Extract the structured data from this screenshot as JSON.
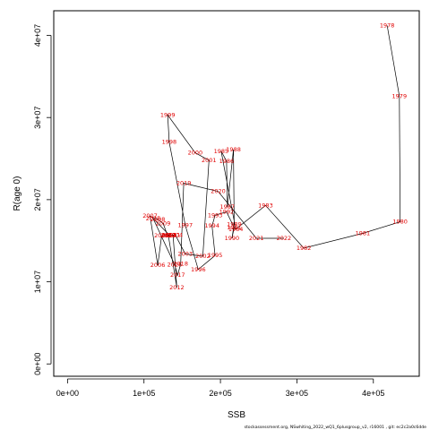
{
  "chart_data": {
    "type": "line",
    "title": "",
    "xlabel": "SSB",
    "ylabel": "R(age 0)",
    "xlim": [
      -18000,
      460000
    ],
    "ylim": [
      -1500000,
      43000000
    ],
    "x_ticks": [
      0,
      100000,
      200000,
      300000,
      400000
    ],
    "x_tick_labels": [
      "0e+00",
      "1e+05",
      "2e+05",
      "3e+05",
      "4e+05"
    ],
    "y_ticks": [
      0,
      10000000,
      20000000,
      30000000,
      40000000
    ],
    "y_tick_labels": [
      "0e+00",
      "1e+07",
      "2e+07",
      "3e+07",
      "4e+07"
    ],
    "grid": false,
    "line_color": "#000000",
    "label_color": "#e00000",
    "points": [
      {
        "year": "1978",
        "ssb": 418000,
        "rec": 41200000
      },
      {
        "year": "1979",
        "ssb": 434000,
        "rec": 32600000
      },
      {
        "year": "1980",
        "ssb": 435000,
        "rec": 17300000
      },
      {
        "year": "1981",
        "ssb": 386000,
        "rec": 15900000
      },
      {
        "year": "1982",
        "ssb": 309000,
        "rec": 14100000
      },
      {
        "year": "1983",
        "ssb": 259000,
        "rec": 19300000
      },
      {
        "year": "1984",
        "ssb": 220000,
        "rec": 16400000
      },
      {
        "year": "1985",
        "ssb": 201000,
        "rec": 25900000
      },
      {
        "year": "1986",
        "ssb": 208000,
        "rec": 24700000
      },
      {
        "year": "1987",
        "ssb": 209000,
        "rec": 19100000
      },
      {
        "year": "1988",
        "ssb": 217000,
        "rec": 26100000
      },
      {
        "year": "1989",
        "ssb": 218000,
        "rec": 17000000
      },
      {
        "year": "1990",
        "ssb": 215000,
        "rec": 15300000
      },
      {
        "year": "1991",
        "ssb": 218000,
        "rec": 16600000
      },
      {
        "year": "1992",
        "ssb": 208000,
        "rec": 18500000
      },
      {
        "year": "1993",
        "ssb": 193000,
        "rec": 18100000
      },
      {
        "year": "1994",
        "ssb": 189000,
        "rec": 16800000
      },
      {
        "year": "1995",
        "ssb": 193000,
        "rec": 13200000
      },
      {
        "year": "1996",
        "ssb": 171000,
        "rec": 11500000
      },
      {
        "year": "1997",
        "ssb": 154000,
        "rec": 16900000
      },
      {
        "year": "1998",
        "ssb": 133000,
        "rec": 27000000
      },
      {
        "year": "1999",
        "ssb": 131000,
        "rec": 30300000
      },
      {
        "year": "2000",
        "ssb": 167000,
        "rec": 25700000
      },
      {
        "year": "2001",
        "ssb": 185000,
        "rec": 24800000
      },
      {
        "year": "2002",
        "ssb": 177000,
        "rec": 13100000
      },
      {
        "year": "2003",
        "ssb": 154000,
        "rec": 13400000
      },
      {
        "year": "2004",
        "ssb": 141000,
        "rec": 15700000
      },
      {
        "year": "2005",
        "ssb": 123000,
        "rec": 15600000
      },
      {
        "year": "2006",
        "ssb": 118000,
        "rec": 12000000
      },
      {
        "year": "2007",
        "ssb": 108000,
        "rec": 18000000
      },
      {
        "year": "2008",
        "ssb": 118000,
        "rec": 17600000
      },
      {
        "year": "2009",
        "ssb": 125000,
        "rec": 17100000
      },
      {
        "year": "2010",
        "ssb": 131000,
        "rec": 15600000
      },
      {
        "year": "2011",
        "ssb": 138000,
        "rec": 15700000
      },
      {
        "year": "2012",
        "ssb": 143000,
        "rec": 9300000
      },
      {
        "year": "2013",
        "ssb": 132000,
        "rec": 15600000
      },
      {
        "year": "2014",
        "ssb": 133000,
        "rec": 15700000
      },
      {
        "year": "2015",
        "ssb": 112000,
        "rec": 17700000
      },
      {
        "year": "2016",
        "ssb": 140000,
        "rec": 12100000
      },
      {
        "year": "2017",
        "ssb": 144000,
        "rec": 10800000
      },
      {
        "year": "2018",
        "ssb": 148000,
        "rec": 12200000
      },
      {
        "year": "2019",
        "ssb": 152000,
        "rec": 22000000
      },
      {
        "year": "2020",
        "ssb": 197000,
        "rec": 21000000
      },
      {
        "year": "2021",
        "ssb": 247000,
        "rec": 15300000
      },
      {
        "year": "2022",
        "ssb": 283000,
        "rec": 15300000
      }
    ]
  },
  "footer": "stockassessment.org, NSwhiting_2022_wQ1_6plusgroup_v2, r16001 , git: ec2c2a0c6dde"
}
